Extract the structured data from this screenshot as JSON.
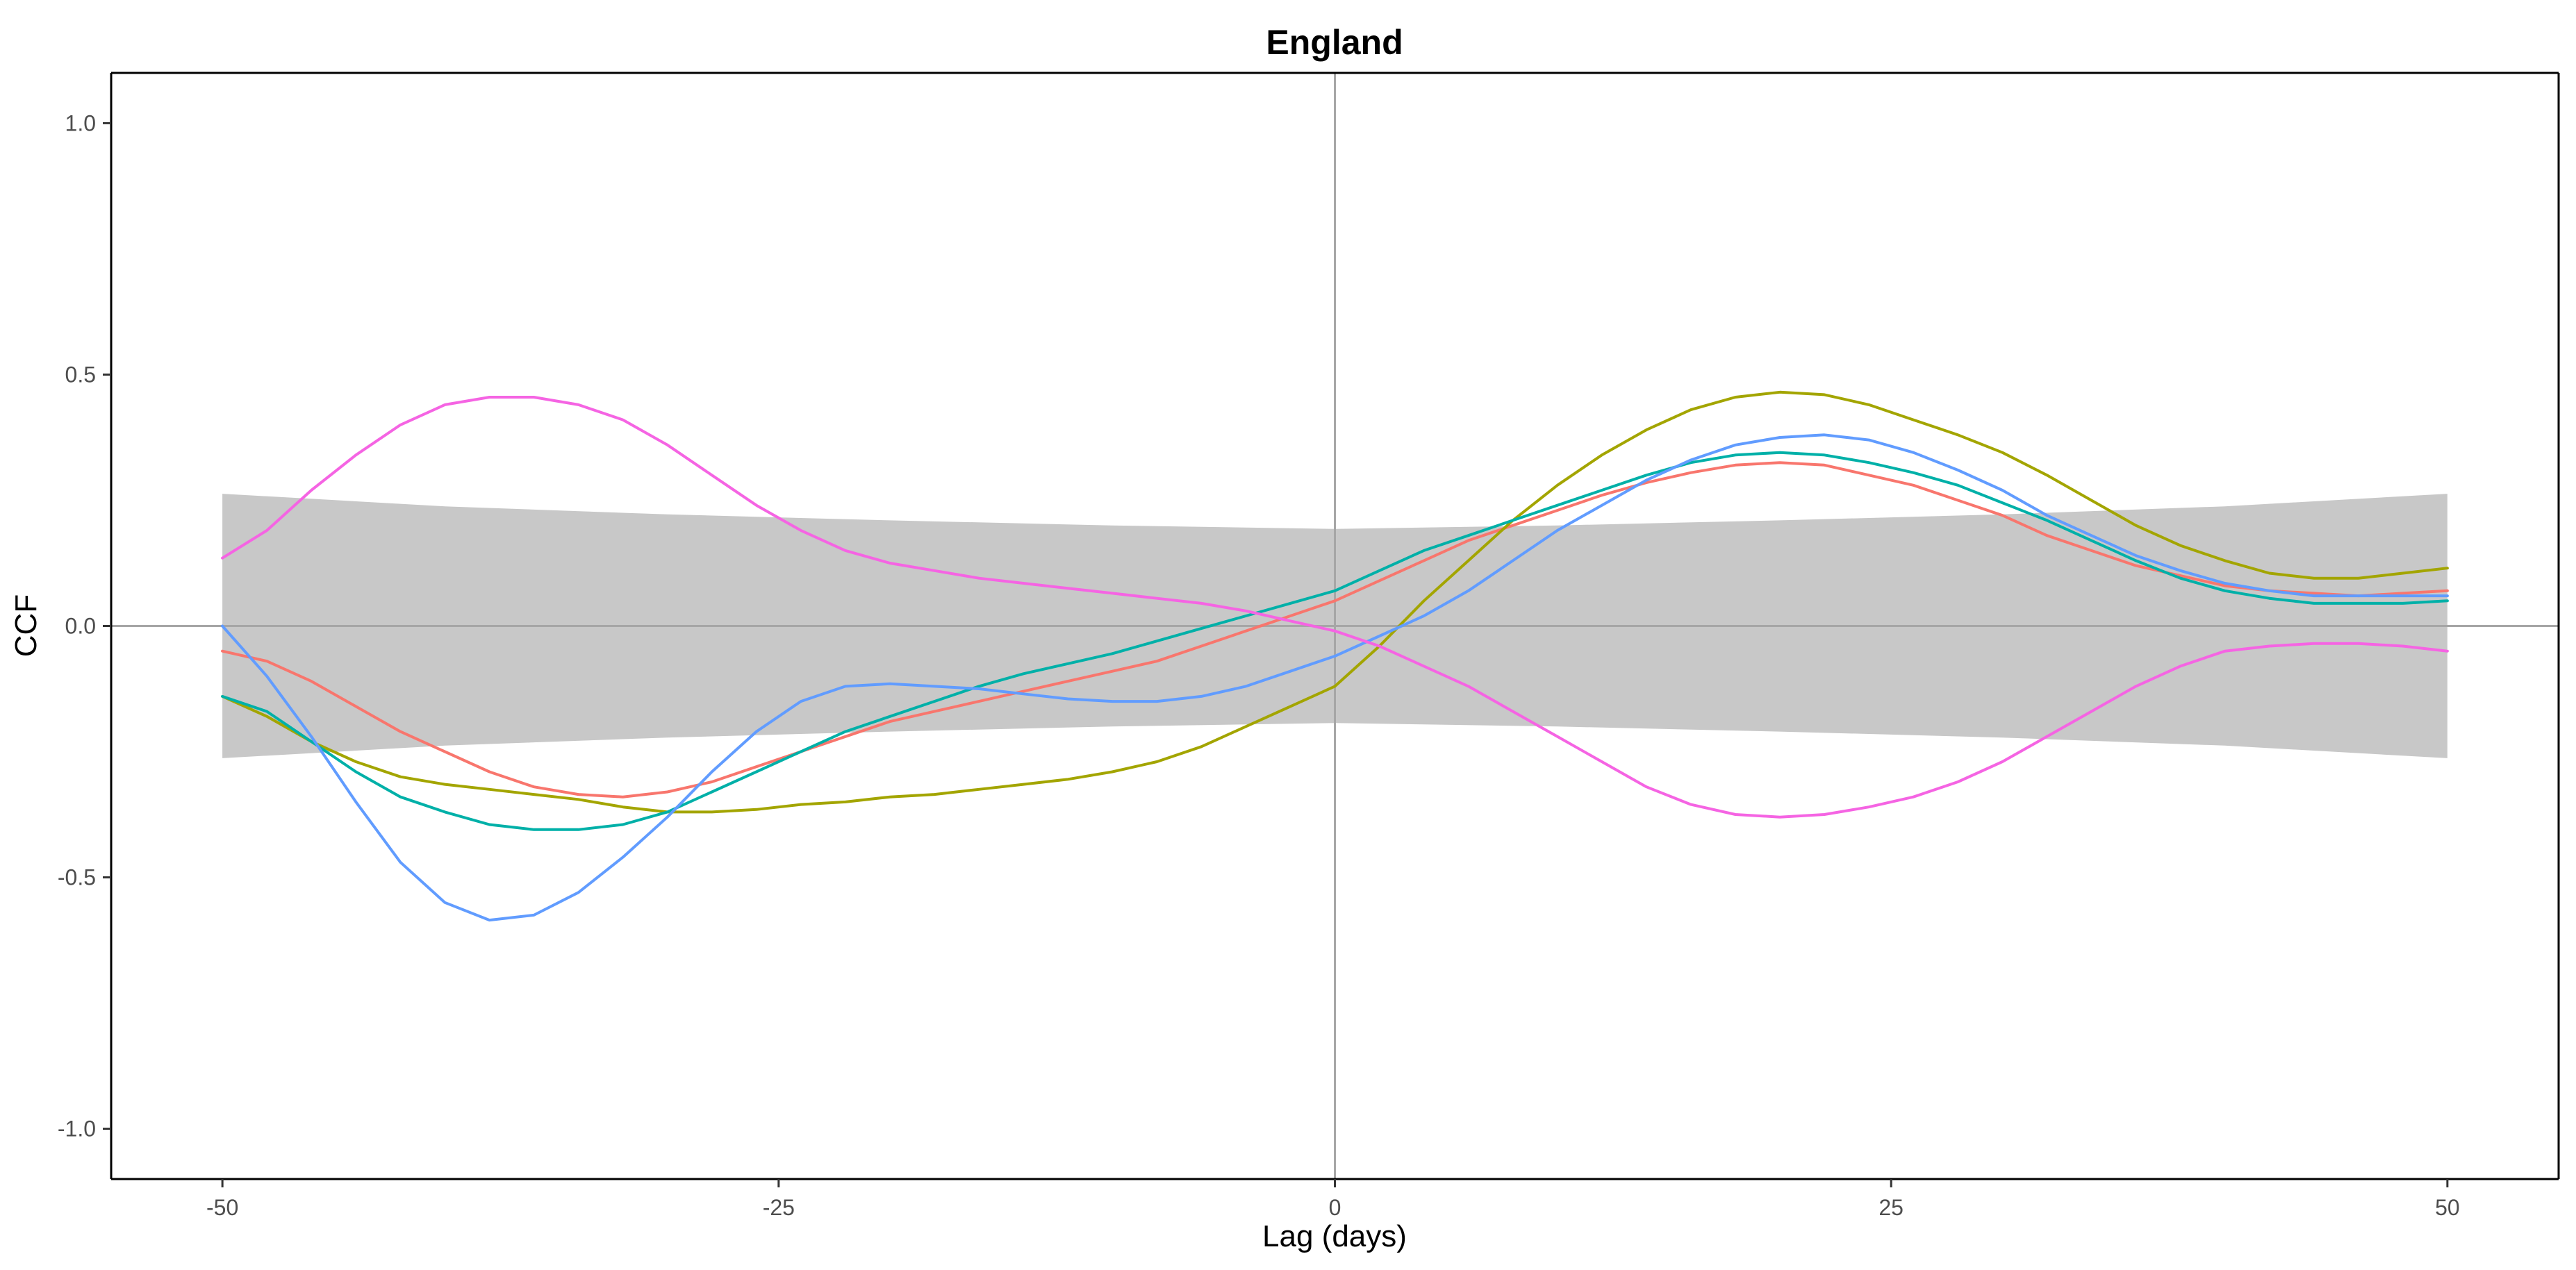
{
  "chart_data": {
    "type": "line",
    "title": "England",
    "xlabel": "Lag (days)",
    "ylabel": "CCF",
    "xlim": [
      -55,
      55
    ],
    "ylim": [
      -1.1,
      1.1
    ],
    "xticks": [
      -50,
      -25,
      0,
      25,
      50
    ],
    "xtick_labels": [
      "-50",
      "-25",
      "0",
      "25",
      "50"
    ],
    "yticks": [
      -1.0,
      -0.5,
      0.0,
      0.5,
      1.0
    ],
    "ytick_labels": [
      "-1.0",
      "-0.5",
      "0.0",
      "0.5",
      "1.0"
    ],
    "grid": false,
    "legend": "none",
    "reference_lines": {
      "x": 0,
      "y": 0,
      "color": "#a6a6a6"
    },
    "confidence_band": {
      "color": "#c8c8c8",
      "x": [
        -50,
        -40,
        -30,
        -20,
        -10,
        0,
        10,
        20,
        30,
        40,
        50
      ],
      "upper": [
        0.263,
        0.238,
        0.222,
        0.21,
        0.2,
        0.193,
        0.2,
        0.21,
        0.222,
        0.238,
        0.263
      ],
      "lower": [
        -0.263,
        -0.238,
        -0.222,
        -0.21,
        -0.2,
        -0.193,
        -0.2,
        -0.21,
        -0.222,
        -0.238,
        -0.263
      ]
    },
    "x": [
      -50,
      -48,
      -46,
      -44,
      -42,
      -40,
      -38,
      -36,
      -34,
      -32,
      -30,
      -28,
      -26,
      -24,
      -22,
      -20,
      -18,
      -16,
      -14,
      -12,
      -10,
      -8,
      -6,
      -4,
      -2,
      0,
      2,
      4,
      6,
      8,
      10,
      12,
      14,
      16,
      18,
      20,
      22,
      24,
      26,
      28,
      30,
      32,
      34,
      36,
      38,
      40,
      42,
      44,
      46,
      48,
      50
    ],
    "series": [
      {
        "color": "#f8766d",
        "values": [
          -0.05,
          -0.07,
          -0.11,
          -0.16,
          -0.21,
          -0.25,
          -0.29,
          -0.32,
          -0.335,
          -0.34,
          -0.33,
          -0.31,
          -0.28,
          -0.25,
          -0.22,
          -0.19,
          -0.17,
          -0.15,
          -0.13,
          -0.11,
          -0.09,
          -0.07,
          -0.04,
          -0.01,
          0.02,
          0.05,
          0.09,
          0.13,
          0.17,
          0.2,
          0.23,
          0.26,
          0.285,
          0.305,
          0.32,
          0.325,
          0.32,
          0.3,
          0.28,
          0.25,
          0.22,
          0.18,
          0.15,
          0.12,
          0.1,
          0.08,
          0.07,
          0.065,
          0.06,
          0.065,
          0.07
        ]
      },
      {
        "color": "#a3a500",
        "values": [
          -0.14,
          -0.18,
          -0.23,
          -0.27,
          -0.3,
          -0.315,
          -0.325,
          -0.335,
          -0.345,
          -0.36,
          -0.37,
          -0.37,
          -0.365,
          -0.355,
          -0.35,
          -0.34,
          -0.335,
          -0.325,
          -0.315,
          -0.305,
          -0.29,
          -0.27,
          -0.24,
          -0.2,
          -0.16,
          -0.12,
          -0.04,
          0.05,
          0.13,
          0.21,
          0.28,
          0.34,
          0.39,
          0.43,
          0.455,
          0.465,
          0.46,
          0.44,
          0.41,
          0.38,
          0.345,
          0.3,
          0.25,
          0.2,
          0.16,
          0.13,
          0.105,
          0.095,
          0.095,
          0.105,
          0.115
        ]
      },
      {
        "color": "#00b0a8",
        "values": [
          -0.14,
          -0.17,
          -0.23,
          -0.29,
          -0.34,
          -0.37,
          -0.395,
          -0.405,
          -0.405,
          -0.395,
          -0.37,
          -0.33,
          -0.29,
          -0.25,
          -0.21,
          -0.18,
          -0.15,
          -0.12,
          -0.095,
          -0.075,
          -0.055,
          -0.03,
          -0.005,
          0.02,
          0.045,
          0.07,
          0.11,
          0.15,
          0.18,
          0.21,
          0.24,
          0.27,
          0.3,
          0.325,
          0.34,
          0.345,
          0.34,
          0.325,
          0.305,
          0.28,
          0.245,
          0.21,
          0.17,
          0.13,
          0.095,
          0.07,
          0.055,
          0.045,
          0.045,
          0.045,
          0.05
        ]
      },
      {
        "color": "#619cff",
        "values": [
          0.0,
          -0.1,
          -0.22,
          -0.35,
          -0.47,
          -0.55,
          -0.585,
          -0.575,
          -0.53,
          -0.46,
          -0.38,
          -0.29,
          -0.21,
          -0.15,
          -0.12,
          -0.115,
          -0.12,
          -0.125,
          -0.135,
          -0.145,
          -0.15,
          -0.15,
          -0.14,
          -0.12,
          -0.09,
          -0.06,
          -0.02,
          0.02,
          0.07,
          0.13,
          0.19,
          0.24,
          0.29,
          0.33,
          0.36,
          0.375,
          0.38,
          0.37,
          0.345,
          0.31,
          0.27,
          0.22,
          0.18,
          0.14,
          0.11,
          0.085,
          0.07,
          0.06,
          0.06,
          0.06,
          0.06
        ]
      },
      {
        "color": "#f564e3",
        "values": [
          0.135,
          0.19,
          0.27,
          0.34,
          0.4,
          0.44,
          0.455,
          0.455,
          0.44,
          0.41,
          0.36,
          0.3,
          0.24,
          0.19,
          0.15,
          0.125,
          0.11,
          0.095,
          0.085,
          0.075,
          0.065,
          0.055,
          0.045,
          0.03,
          0.01,
          -0.01,
          -0.04,
          -0.08,
          -0.12,
          -0.17,
          -0.22,
          -0.27,
          -0.32,
          -0.355,
          -0.375,
          -0.38,
          -0.375,
          -0.36,
          -0.34,
          -0.31,
          -0.27,
          -0.22,
          -0.17,
          -0.12,
          -0.08,
          -0.05,
          -0.04,
          -0.035,
          -0.035,
          -0.04,
          -0.05
        ]
      }
    ]
  }
}
